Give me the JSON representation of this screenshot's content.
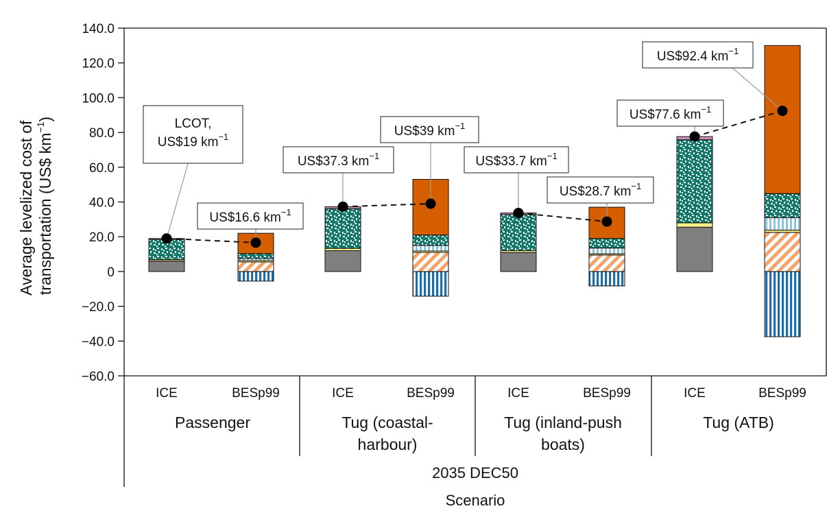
{
  "chart_data": {
    "type": "bar",
    "stacked": true,
    "ylabel_line1": "Average levelized cost of",
    "ylabel_line2": "transportation (US$ km",
    "ylabel_sup": "−1",
    "ylabel_close": ")",
    "ylim": [
      -60,
      140
    ],
    "yticks": [
      "140.0",
      "120.0",
      "100.0",
      "80.0",
      "60.0",
      "40.0",
      "20.0",
      "0",
      "−20.0",
      "−40.0",
      "−60.0"
    ],
    "ytick_values": [
      140,
      120,
      100,
      80,
      60,
      40,
      20,
      0,
      -20,
      -40,
      -60
    ],
    "scenario_label": "2035 DEC50",
    "xlabel": "Scenario",
    "groups": [
      {
        "label_lines": [
          "Passenger"
        ]
      },
      {
        "label_lines": [
          "Tug (coastal-",
          "harbour)"
        ]
      },
      {
        "label_lines": [
          "Tug (inland-push",
          "boats)"
        ]
      },
      {
        "label_lines": [
          "Tug (ATB)"
        ]
      }
    ],
    "palette": {
      "gray": "#7f7f7f",
      "yellow": "#f5ef8a",
      "green": "#137a6b",
      "pink": "#c98fb5",
      "orange": "#d55e00",
      "hatch_orange": "#f2a46a",
      "light_blue": "#8fc4dd",
      "dark_blue": "#1c6ea4"
    },
    "bars": [
      {
        "group": 0,
        "label": "ICE",
        "lcot": 19.0,
        "segments": [
          {
            "fill": "gray",
            "from": 0,
            "to": 6.0
          },
          {
            "fill": "yellow",
            "from": 6.0,
            "to": 6.8
          },
          {
            "fill": "green",
            "from": 6.8,
            "to": 18.4
          },
          {
            "fill": "pink",
            "from": 18.4,
            "to": 19.0
          }
        ]
      },
      {
        "group": 0,
        "label": "BESp99",
        "lcot": 16.6,
        "segments": [
          {
            "fill": "dark_blue",
            "from": -5.5,
            "to": 0
          },
          {
            "fill": "hatch_orange",
            "from": 0,
            "to": 5.5
          },
          {
            "fill": "yellow",
            "from": 5.5,
            "to": 6.3
          },
          {
            "fill": "light_blue",
            "from": 6.3,
            "to": 7.5
          },
          {
            "fill": "green",
            "from": 7.5,
            "to": 10.3
          },
          {
            "fill": "orange",
            "from": 10.3,
            "to": 22.0
          }
        ]
      },
      {
        "group": 1,
        "label": "ICE",
        "lcot": 37.3,
        "segments": [
          {
            "fill": "gray",
            "from": 0,
            "to": 12.0
          },
          {
            "fill": "yellow",
            "from": 12.0,
            "to": 13.3
          },
          {
            "fill": "green",
            "from": 13.3,
            "to": 36.2
          },
          {
            "fill": "pink",
            "from": 36.2,
            "to": 37.3
          }
        ]
      },
      {
        "group": 1,
        "label": "BESp99",
        "lcot": 39.0,
        "segments": [
          {
            "fill": "dark_blue",
            "from": -14.2,
            "to": 0
          },
          {
            "fill": "hatch_orange",
            "from": 0,
            "to": 11.0
          },
          {
            "fill": "yellow",
            "from": 11.0,
            "to": 11.8
          },
          {
            "fill": "light_blue",
            "from": 11.8,
            "to": 15.0
          },
          {
            "fill": "green",
            "from": 15.0,
            "to": 21.0
          },
          {
            "fill": "orange",
            "from": 21.0,
            "to": 53.0
          }
        ]
      },
      {
        "group": 2,
        "label": "ICE",
        "lcot": 33.7,
        "segments": [
          {
            "fill": "gray",
            "from": 0,
            "to": 11.0
          },
          {
            "fill": "yellow",
            "from": 11.0,
            "to": 12.0
          },
          {
            "fill": "green",
            "from": 12.0,
            "to": 32.8
          },
          {
            "fill": "pink",
            "from": 32.8,
            "to": 33.7
          }
        ]
      },
      {
        "group": 2,
        "label": "BESp99",
        "lcot": 28.7,
        "segments": [
          {
            "fill": "dark_blue",
            "from": -8.3,
            "to": 0
          },
          {
            "fill": "hatch_orange",
            "from": 0,
            "to": 9.5
          },
          {
            "fill": "yellow",
            "from": 9.5,
            "to": 10.2
          },
          {
            "fill": "light_blue",
            "from": 10.2,
            "to": 13.5
          },
          {
            "fill": "green",
            "from": 13.5,
            "to": 19.0
          },
          {
            "fill": "orange",
            "from": 19.0,
            "to": 37.0
          }
        ]
      },
      {
        "group": 3,
        "label": "ICE",
        "lcot": 77.6,
        "segments": [
          {
            "fill": "gray",
            "from": 0,
            "to": 25.5
          },
          {
            "fill": "yellow",
            "from": 25.5,
            "to": 28.0
          },
          {
            "fill": "green",
            "from": 28.0,
            "to": 75.8
          },
          {
            "fill": "pink",
            "from": 75.8,
            "to": 77.6
          }
        ]
      },
      {
        "group": 3,
        "label": "BESp99",
        "lcot": 92.4,
        "segments": [
          {
            "fill": "dark_blue",
            "from": -37.5,
            "to": 0
          },
          {
            "fill": "hatch_orange",
            "from": 0,
            "to": 22.5
          },
          {
            "fill": "yellow",
            "from": 22.5,
            "to": 23.8
          },
          {
            "fill": "light_blue",
            "from": 23.8,
            "to": 31.0
          },
          {
            "fill": "green",
            "from": 31.0,
            "to": 44.8
          },
          {
            "fill": "orange",
            "from": 44.8,
            "to": 130.0
          }
        ]
      }
    ],
    "annotations": [
      {
        "bar": 0,
        "lines": [
          "LCOT,",
          "US$19 km"
        ],
        "sup": "−1"
      },
      {
        "bar": 1,
        "lines": [
          "US$16.6 km"
        ],
        "sup": "−1"
      },
      {
        "bar": 2,
        "lines": [
          "US$37.3 km"
        ],
        "sup": "−1"
      },
      {
        "bar": 3,
        "lines": [
          "US$39 km"
        ],
        "sup": "−1"
      },
      {
        "bar": 4,
        "lines": [
          "US$33.7 km"
        ],
        "sup": "−1"
      },
      {
        "bar": 5,
        "lines": [
          "US$28.7 km"
        ],
        "sup": "−1"
      },
      {
        "bar": 6,
        "lines": [
          "US$77.6 km"
        ],
        "sup": "−1"
      },
      {
        "bar": 7,
        "lines": [
          "US$92.4 km"
        ],
        "sup": "−1"
      }
    ]
  }
}
